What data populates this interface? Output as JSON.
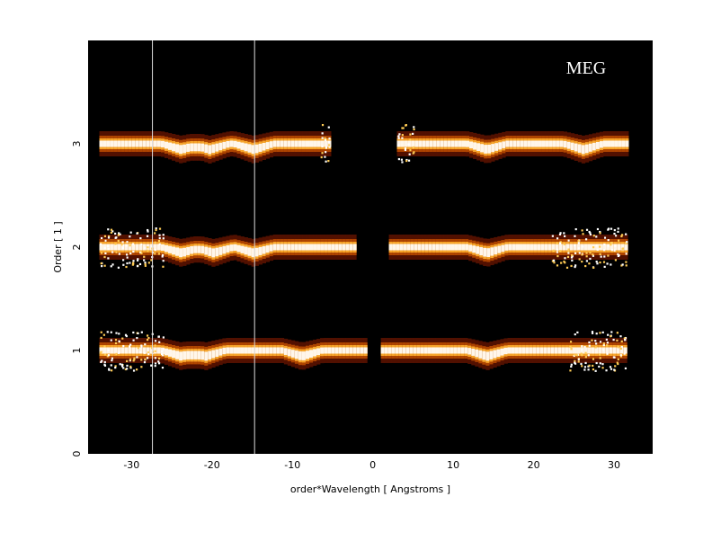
{
  "chart_data": {
    "type": "heatmap",
    "annotation": "MEG",
    "xlabel": "order*Wavelength [ Angstroms ]",
    "ylabel": "Order [ 1 ]",
    "xlim": [
      -35.4,
      34.8
    ],
    "ylim": [
      0,
      4.0
    ],
    "xticks": [
      "-30",
      "-20",
      "-10",
      "0",
      "10",
      "20",
      "30"
    ],
    "xtick_values": [
      -30,
      -20,
      -10,
      0,
      10,
      20,
      30
    ],
    "yticks": [
      "0",
      "1",
      "2",
      "3"
    ],
    "ytick_values": [
      0,
      1,
      2,
      3
    ],
    "vertical_lines": [
      -27.4,
      -14.7
    ],
    "background_color": "#000000",
    "colormap": [
      "#000000",
      "#5a1200",
      "#b84a00",
      "#ffb030",
      "#ffffff"
    ],
    "bands": [
      {
        "order": 3,
        "segments": [
          [
            -34,
            -5.5
          ],
          [
            3,
            31.5
          ]
        ],
        "dips": [
          -24,
          -20.5,
          -15,
          14,
          26
        ],
        "noisy_ends": [
          [
            -7,
            -5.5
          ],
          [
            3,
            5
          ]
        ]
      },
      {
        "order": 2,
        "segments": [
          [
            -34,
            -2.5
          ],
          [
            2,
            31.5
          ]
        ],
        "dips": [
          -24,
          -20,
          -15,
          14
        ],
        "noisy_ends": [
          [
            -34,
            -26
          ],
          [
            22,
            31.5
          ]
        ]
      },
      {
        "order": 1,
        "segments": [
          [
            -34,
            -1
          ],
          [
            1,
            31.5
          ]
        ],
        "dips": [
          -24,
          -21,
          -9,
          14
        ],
        "noisy_ends": [
          [
            -34,
            -26
          ],
          [
            24,
            31.5
          ]
        ]
      }
    ]
  }
}
